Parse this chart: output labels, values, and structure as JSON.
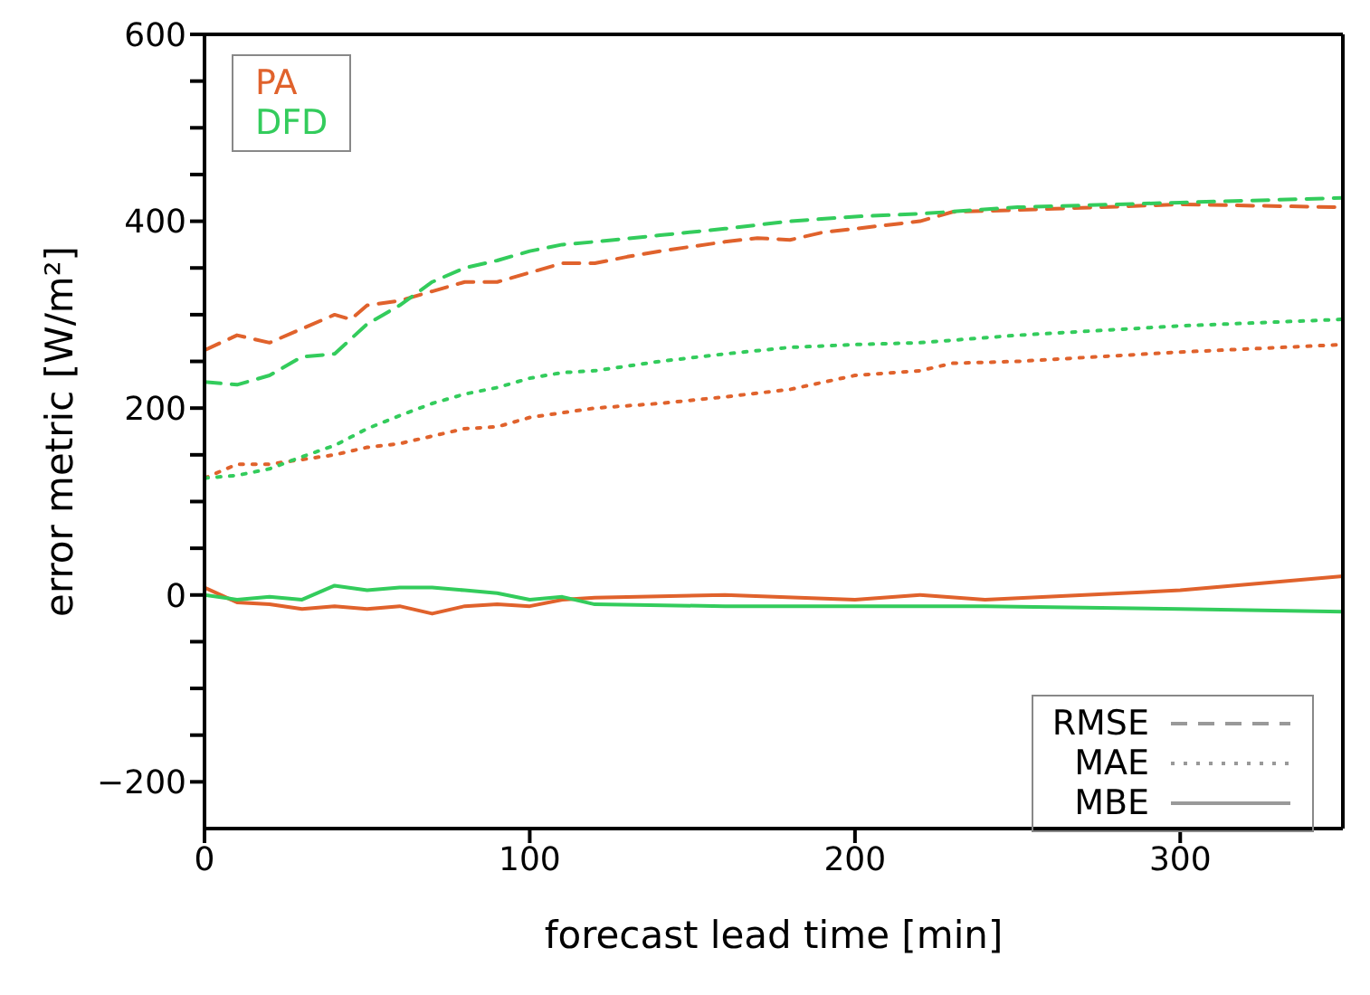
{
  "chart_data": {
    "type": "line",
    "xlabel": "forecast lead time [min]",
    "ylabel": "error metric [W/m²]",
    "xlim": [
      0,
      350
    ],
    "xticks": [
      0,
      100,
      200,
      300
    ],
    "ylim": [
      -250,
      600
    ],
    "yticks": [
      {
        "value": -200,
        "label": "−200"
      },
      {
        "value": -150,
        "label": null
      },
      {
        "value": -100,
        "label": null
      },
      {
        "value": -50,
        "label": null
      },
      0,
      {
        "value": 50,
        "label": null
      },
      {
        "value": 100,
        "label": null
      },
      {
        "value": 150,
        "label": null
      },
      200,
      {
        "value": 250,
        "label": null
      },
      {
        "value": 300,
        "label": null
      },
      {
        "value": 350,
        "label": null
      },
      400,
      {
        "value": 450,
        "label": null
      },
      {
        "value": 500,
        "label": null
      },
      {
        "value": 550,
        "label": null
      },
      600
    ],
    "legend": "top left",
    "marker": "none",
    "annotations": [
      "RMSE",
      "MAE",
      "MBE"
    ],
    "series": [
      {
        "name": "PA",
        "color": "#e0622c",
        "line_style": "dashed",
        "x": [
          0,
          10,
          20,
          30,
          40,
          45,
          50,
          60,
          70,
          80,
          90,
          100,
          110,
          120,
          130,
          140,
          160,
          170,
          180,
          190,
          200,
          220,
          230,
          250,
          300,
          350
        ],
        "values": [
          262,
          278,
          270,
          285,
          300,
          295,
          310,
          315,
          325,
          335,
          335,
          345,
          355,
          355,
          362,
          368,
          378,
          382,
          380,
          388,
          392,
          400,
          410,
          412,
          418,
          415
        ]
      },
      {
        "color": "#e0622c",
        "line_style": "dotted",
        "x": [
          0,
          10,
          20,
          30,
          40,
          50,
          60,
          70,
          80,
          90,
          100,
          110,
          120,
          140,
          160,
          180,
          200,
          220,
          230,
          250,
          300,
          350
        ],
        "values": [
          125,
          140,
          140,
          145,
          150,
          158,
          162,
          170,
          178,
          180,
          190,
          195,
          200,
          205,
          212,
          220,
          235,
          240,
          248,
          250,
          260,
          268
        ]
      },
      {
        "color": "#e0622c",
        "line_style": "solid",
        "x": [
          0,
          10,
          20,
          30,
          40,
          50,
          60,
          70,
          80,
          90,
          100,
          110,
          120,
          160,
          200,
          220,
          240,
          300,
          350
        ],
        "values": [
          8,
          -8,
          -10,
          -15,
          -12,
          -15,
          -12,
          -20,
          -12,
          -10,
          -12,
          -5,
          -3,
          0,
          -5,
          0,
          -5,
          5,
          20
        ]
      },
      {
        "name": "DFD",
        "color": "#33cc5c",
        "line_style": "dashed",
        "x": [
          0,
          10,
          20,
          30,
          40,
          50,
          60,
          70,
          80,
          90,
          100,
          110,
          120,
          140,
          160,
          180,
          200,
          220,
          250,
          300,
          350
        ],
        "values": [
          228,
          225,
          235,
          255,
          258,
          290,
          310,
          335,
          350,
          358,
          368,
          375,
          378,
          385,
          392,
          400,
          405,
          408,
          415,
          420,
          425
        ]
      },
      {
        "color": "#33cc5c",
        "line_style": "dotted",
        "x": [
          0,
          10,
          20,
          30,
          40,
          50,
          60,
          70,
          80,
          90,
          100,
          110,
          120,
          140,
          160,
          180,
          200,
          220,
          250,
          300,
          350
        ],
        "values": [
          125,
          128,
          135,
          148,
          160,
          178,
          192,
          205,
          215,
          222,
          232,
          238,
          240,
          250,
          258,
          265,
          268,
          270,
          278,
          288,
          295
        ]
      },
      {
        "color": "#33cc5c",
        "line_style": "solid",
        "x": [
          0,
          10,
          20,
          30,
          40,
          50,
          60,
          70,
          80,
          90,
          100,
          110,
          120,
          160,
          200,
          240,
          300,
          350
        ],
        "values": [
          0,
          -5,
          -2,
          -5,
          10,
          5,
          8,
          8,
          5,
          2,
          -5,
          -2,
          -10,
          -12,
          -12,
          -12,
          -15,
          -18
        ]
      }
    ]
  }
}
